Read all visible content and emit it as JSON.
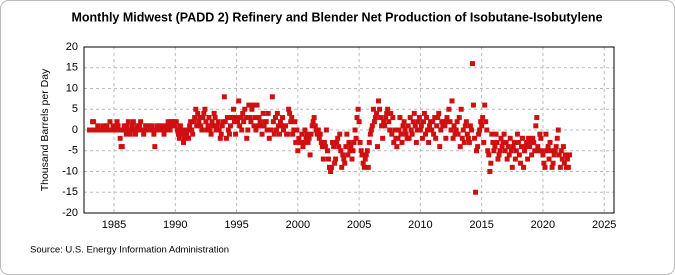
{
  "chart_data": {
    "type": "scatter",
    "title": "Monthly Midwest (PADD 2) Refinery and Blender Net Production of Isobutane-Isobutylene",
    "y_label": "Thousand Barrels per Day",
    "source": "Source: U.S. Energy Information Administration",
    "xlim": [
      1982.55,
      2025.8
    ],
    "ylim": [
      -20,
      20
    ],
    "xticks": [
      1985,
      1990,
      1995,
      2000,
      2005,
      2010,
      2015,
      2020,
      2025
    ],
    "yticks": [
      -20,
      -15,
      -10,
      -5,
      0,
      5,
      10,
      15,
      20
    ],
    "grid": true,
    "series": [
      {
        "color": "#d01010",
        "x": [
          1983,
          1983.08,
          1983.17,
          1983.25,
          1983.33,
          1983.42,
          1983.5,
          1983.58,
          1983.67,
          1983.75,
          1983.83,
          1983.92,
          1984,
          1984.08,
          1984.17,
          1984.25,
          1984.33,
          1984.42,
          1984.5,
          1984.58,
          1984.67,
          1984.75,
          1984.83,
          1984.92,
          1985,
          1985.08,
          1985.17,
          1985.25,
          1985.33,
          1985.42,
          1985.5,
          1985.58,
          1985.67,
          1985.75,
          1985.83,
          1985.92,
          1986,
          1986.08,
          1986.17,
          1986.25,
          1986.33,
          1986.42,
          1986.5,
          1986.58,
          1986.67,
          1986.75,
          1986.83,
          1986.92,
          1987,
          1987.08,
          1987.17,
          1987.25,
          1987.33,
          1987.42,
          1987.5,
          1987.58,
          1987.67,
          1987.75,
          1987.83,
          1987.92,
          1988,
          1988.08,
          1988.17,
          1988.25,
          1988.33,
          1988.42,
          1988.5,
          1988.58,
          1988.67,
          1988.75,
          1988.83,
          1988.92,
          1989,
          1989.08,
          1989.17,
          1989.25,
          1989.33,
          1989.42,
          1989.5,
          1989.58,
          1989.67,
          1989.75,
          1989.83,
          1989.92,
          1990,
          1990.08,
          1990.17,
          1990.25,
          1990.33,
          1990.42,
          1990.5,
          1990.58,
          1990.67,
          1990.75,
          1990.83,
          1990.92,
          1991,
          1991.08,
          1991.17,
          1991.25,
          1991.33,
          1991.42,
          1991.5,
          1991.58,
          1991.67,
          1991.75,
          1991.83,
          1991.92,
          1992,
          1992.08,
          1992.17,
          1992.25,
          1992.33,
          1992.42,
          1992.5,
          1992.58,
          1992.67,
          1992.75,
          1992.83,
          1992.92,
          1993,
          1993.08,
          1993.17,
          1993.25,
          1993.33,
          1993.42,
          1993.5,
          1993.58,
          1993.67,
          1993.75,
          1993.83,
          1993.92,
          1994,
          1994.08,
          1994.17,
          1994.25,
          1994.33,
          1994.42,
          1994.5,
          1994.58,
          1994.67,
          1994.75,
          1994.83,
          1994.92,
          1995,
          1995.08,
          1995.17,
          1995.25,
          1995.33,
          1995.42,
          1995.5,
          1995.58,
          1995.67,
          1995.75,
          1995.83,
          1995.92,
          1996,
          1996.08,
          1996.17,
          1996.25,
          1996.33,
          1996.42,
          1996.5,
          1996.58,
          1996.67,
          1996.75,
          1996.83,
          1996.92,
          1997,
          1997.08,
          1997.17,
          1997.25,
          1997.33,
          1997.42,
          1997.5,
          1997.58,
          1997.67,
          1997.75,
          1997.83,
          1997.92,
          1998,
          1998.08,
          1998.17,
          1998.25,
          1998.33,
          1998.42,
          1998.5,
          1998.58,
          1998.67,
          1998.75,
          1998.83,
          1998.92,
          1999,
          1999.08,
          1999.17,
          1999.25,
          1999.33,
          1999.42,
          1999.5,
          1999.58,
          1999.67,
          1999.75,
          1999.83,
          1999.92,
          2000,
          2000.08,
          2000.17,
          2000.25,
          2000.33,
          2000.42,
          2000.5,
          2000.58,
          2000.67,
          2000.75,
          2000.83,
          2000.92,
          2001,
          2001.08,
          2001.17,
          2001.25,
          2001.33,
          2001.42,
          2001.5,
          2001.58,
          2001.67,
          2001.75,
          2001.83,
          2001.92,
          2002,
          2002.08,
          2002.17,
          2002.25,
          2002.33,
          2002.42,
          2002.5,
          2002.58,
          2002.67,
          2002.75,
          2002.83,
          2002.92,
          2003,
          2003.08,
          2003.17,
          2003.25,
          2003.33,
          2003.42,
          2003.5,
          2003.58,
          2003.67,
          2003.75,
          2003.83,
          2003.92,
          2004,
          2004.08,
          2004.17,
          2004.25,
          2004.33,
          2004.42,
          2004.5,
          2004.58,
          2004.67,
          2004.75,
          2004.83,
          2004.92,
          2005,
          2005.08,
          2005.17,
          2005.25,
          2005.33,
          2005.42,
          2005.5,
          2005.58,
          2005.67,
          2005.75,
          2005.83,
          2005.92,
          2006,
          2006.08,
          2006.17,
          2006.25,
          2006.33,
          2006.42,
          2006.5,
          2006.58,
          2006.67,
          2006.75,
          2006.83,
          2006.92,
          2007,
          2007.08,
          2007.17,
          2007.25,
          2007.33,
          2007.42,
          2007.5,
          2007.58,
          2007.67,
          2007.75,
          2007.83,
          2007.92,
          2008,
          2008.08,
          2008.17,
          2008.25,
          2008.33,
          2008.42,
          2008.5,
          2008.58,
          2008.67,
          2008.75,
          2008.83,
          2008.92,
          2009,
          2009.08,
          2009.17,
          2009.25,
          2009.33,
          2009.42,
          2009.5,
          2009.58,
          2009.67,
          2009.75,
          2009.83,
          2009.92,
          2010,
          2010.08,
          2010.17,
          2010.25,
          2010.33,
          2010.42,
          2010.5,
          2010.58,
          2010.67,
          2010.75,
          2010.83,
          2010.92,
          2011,
          2011.08,
          2011.17,
          2011.25,
          2011.33,
          2011.42,
          2011.5,
          2011.58,
          2011.67,
          2011.75,
          2011.83,
          2011.92,
          2012,
          2012.08,
          2012.17,
          2012.25,
          2012.33,
          2012.42,
          2012.5,
          2012.58,
          2012.67,
          2012.75,
          2012.83,
          2012.92,
          2013,
          2013.08,
          2013.17,
          2013.25,
          2013.33,
          2013.42,
          2013.5,
          2013.58,
          2013.67,
          2013.75,
          2013.83,
          2013.92,
          2014,
          2014.08,
          2014.17,
          2014.25,
          2014.33,
          2014.42,
          2014.5,
          2014.58,
          2014.67,
          2014.75,
          2014.83,
          2014.92,
          2015,
          2015.08,
          2015.17,
          2015.25,
          2015.33,
          2015.42,
          2015.5,
          2015.58,
          2015.67,
          2015.75,
          2015.83,
          2015.92,
          2016,
          2016.08,
          2016.17,
          2016.25,
          2016.33,
          2016.42,
          2016.5,
          2016.58,
          2016.67,
          2016.75,
          2016.83,
          2016.92,
          2017,
          2017.08,
          2017.17,
          2017.25,
          2017.33,
          2017.42,
          2017.5,
          2017.58,
          2017.67,
          2017.75,
          2017.83,
          2017.92,
          2018,
          2018.08,
          2018.17,
          2018.25,
          2018.33,
          2018.42,
          2018.5,
          2018.58,
          2018.67,
          2018.75,
          2018.83,
          2018.92,
          2019,
          2019.08,
          2019.17,
          2019.25,
          2019.33,
          2019.42,
          2019.5,
          2019.58,
          2019.67,
          2019.75,
          2019.83,
          2019.92,
          2020,
          2020.08,
          2020.17,
          2020.25,
          2020.33,
          2020.42,
          2020.5,
          2020.58,
          2020.67,
          2020.75,
          2020.83,
          2020.92,
          2021,
          2021.08,
          2021.17,
          2021.25,
          2021.33,
          2021.42,
          2021.5,
          2021.58,
          2021.67,
          2021.75,
          2021.83,
          2021.92,
          2022,
          2022.08,
          2022.17
        ],
        "values": [
          0,
          0,
          0,
          2,
          2,
          0,
          0,
          0,
          1,
          0,
          0,
          0,
          0,
          1,
          0,
          0,
          1,
          1,
          0,
          0,
          2,
          0,
          0,
          1,
          0,
          0,
          1,
          2,
          1,
          0,
          -2,
          -4,
          -4,
          0,
          1,
          0,
          -1,
          1,
          2,
          0,
          -1,
          0,
          1,
          2,
          0,
          -1,
          0,
          1,
          0,
          1,
          2,
          0,
          0,
          -1,
          0,
          1,
          1,
          0,
          0,
          0,
          1,
          1,
          0,
          -1,
          -4,
          0,
          1,
          0,
          1,
          0,
          1,
          0,
          0,
          -1,
          1,
          0,
          1,
          2,
          1,
          0,
          2,
          1,
          2,
          2,
          1,
          2,
          0,
          -1,
          -2,
          1,
          0,
          -1,
          -3,
          -2,
          0,
          -1,
          0,
          -2,
          1,
          2,
          0,
          -1,
          2,
          3,
          5,
          1,
          4,
          2,
          3,
          1,
          0,
          3,
          4,
          5,
          2,
          0,
          1,
          3,
          0,
          -1,
          2,
          1,
          4,
          3,
          0,
          1,
          2,
          0,
          -2,
          -1,
          1,
          2,
          8,
          2,
          -2,
          3,
          0,
          -1,
          1,
          3,
          3,
          5,
          2,
          -1,
          3,
          2,
          7,
          1,
          3,
          0,
          4,
          2,
          5,
          3,
          -2,
          0,
          6,
          3,
          2,
          5,
          6,
          1,
          3,
          0,
          6,
          1,
          3,
          2,
          1,
          -1,
          4,
          1,
          2,
          2,
          0,
          4,
          -2,
          0,
          0,
          8,
          2,
          -1,
          3,
          0,
          4,
          1,
          -1,
          2,
          1,
          3,
          0,
          1,
          1,
          -1,
          -1,
          5,
          4,
          2,
          3,
          -1,
          0,
          2,
          -3,
          0,
          -5,
          -2,
          -3,
          -3,
          -1,
          -4,
          -3,
          0,
          -2,
          -1,
          -3,
          -2,
          -6,
          -1,
          1,
          2,
          3,
          1,
          0,
          -1,
          0,
          -2,
          -1,
          -3,
          -4,
          -7,
          -3,
          -4,
          0,
          -5,
          -7,
          -9,
          -10,
          -9,
          -3,
          -4,
          -8,
          -7,
          -3,
          -2,
          -4,
          -1,
          -5,
          -9,
          -6,
          -7,
          -8,
          -4,
          -1,
          -6,
          -3,
          -5,
          -4,
          -7,
          -5,
          -3,
          0,
          -2,
          3,
          5,
          2,
          -3,
          -5,
          -6,
          -8,
          -9,
          -7,
          -6,
          -5,
          -9,
          -3,
          -1,
          0,
          1,
          5,
          2,
          3,
          4,
          -4,
          7,
          5,
          3,
          1,
          -2,
          2,
          1,
          3,
          4,
          5,
          2,
          0,
          4,
          -1,
          3,
          -3,
          0,
          -2,
          -4,
          -2,
          0,
          3,
          -1,
          -3,
          1,
          2,
          0,
          -1,
          -2,
          1,
          -2,
          3,
          0,
          -1,
          2,
          4,
          1,
          -3,
          0,
          2,
          3,
          0,
          1,
          -2,
          2,
          4,
          -1,
          3,
          0,
          -3,
          1,
          2,
          0,
          2,
          -1,
          3,
          -2,
          1,
          3,
          4,
          -4,
          0,
          2,
          1,
          2,
          1,
          -2,
          3,
          2,
          5,
          2,
          0,
          7,
          -2,
          1,
          -1,
          0,
          2,
          -1,
          3,
          -4,
          5,
          -2,
          0,
          -3,
          1,
          2,
          -1,
          -2,
          -3,
          1,
          0,
          16,
          6,
          -2,
          -15,
          -5,
          -4,
          -1,
          0,
          2,
          1,
          3,
          -3,
          6,
          2,
          0,
          -5,
          -6,
          -10,
          -8,
          -1,
          -3,
          -5,
          -4,
          -1,
          -3,
          -7,
          -6,
          -5,
          -2,
          -4,
          -3,
          -1,
          -5,
          -3,
          -7,
          -4,
          -6,
          -2,
          -5,
          -9,
          -4,
          -3,
          -7,
          -5,
          -1,
          -3,
          -6,
          -8,
          -4,
          -2,
          -9,
          -5,
          -4,
          -3,
          -7,
          -2,
          -4,
          -3,
          -6,
          -2,
          -3,
          -5,
          1,
          3,
          -4,
          -5,
          -1,
          -2,
          -5,
          -6,
          -8,
          -9,
          -1,
          -5,
          -4,
          -7,
          -3,
          -5,
          -9,
          -8,
          -6,
          -5,
          -4,
          -2,
          0,
          -6,
          -9,
          -5,
          -7,
          -4,
          -8,
          -6,
          -9,
          -7,
          -9,
          -6
        ]
      }
    ]
  }
}
